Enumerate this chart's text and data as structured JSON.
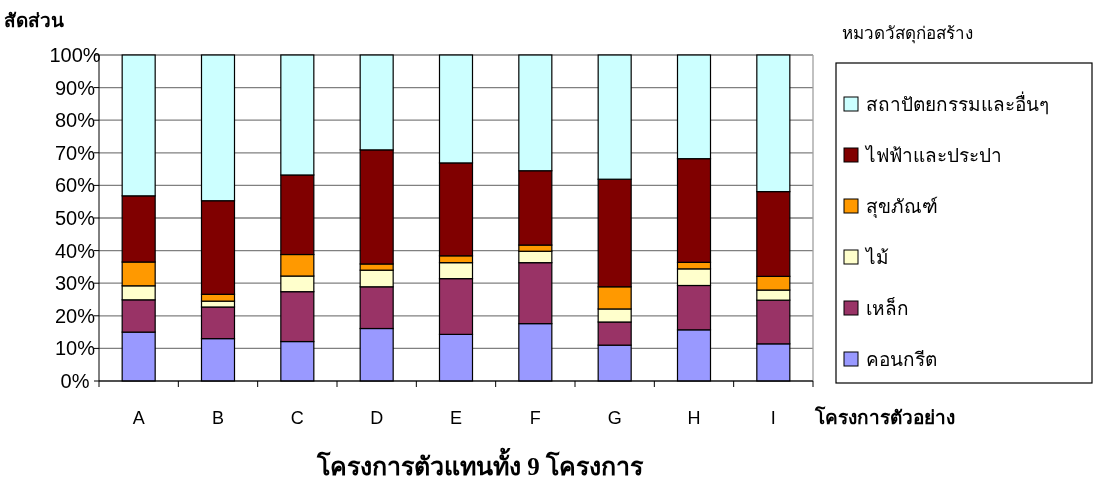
{
  "chart_data": {
    "type": "bar",
    "stacked": true,
    "title": "โครงการตัวแทนทั้ง 9 โครงการ",
    "xlabel": "โครงการตัวอย่าง",
    "ylabel": "สัดส่วน",
    "legend_title": "หมวดวัสดุก่อสร้าง",
    "legend": "right",
    "grid": "y",
    "categories": [
      "A",
      "B",
      "C",
      "D",
      "E",
      "F",
      "G",
      "H",
      "I"
    ],
    "ylim": [
      0,
      100
    ],
    "yticks": [
      {
        "value": 0,
        "label": "0%"
      },
      {
        "value": 10,
        "label": "10%"
      },
      {
        "value": 20,
        "label": "20%"
      },
      {
        "value": 30,
        "label": "30%"
      },
      {
        "value": 40,
        "label": "40%"
      },
      {
        "value": 50,
        "label": "50%"
      },
      {
        "value": 60,
        "label": "60%"
      },
      {
        "value": 70,
        "label": "70%"
      },
      {
        "value": 80,
        "label": "80%"
      },
      {
        "value": 90,
        "label": "90%"
      },
      {
        "value": 100,
        "label": "100%"
      }
    ],
    "series": [
      {
        "name": "คอนกรีต",
        "color": "#9999ff",
        "values": [
          15.0,
          13.0,
          12.1,
          16.1,
          14.3,
          17.6,
          11.0,
          15.7,
          11.4
        ]
      },
      {
        "name": "เหล็ก",
        "color": "#993366",
        "values": [
          9.9,
          9.7,
          15.3,
          12.8,
          17.1,
          18.7,
          7.1,
          13.6,
          13.4
        ]
      },
      {
        "name": "ไม้",
        "color": "#ffffcc",
        "values": [
          4.3,
          1.8,
          4.8,
          5.1,
          4.9,
          3.5,
          4.0,
          5.1,
          3.1
        ]
      },
      {
        "name": "สุขภัณฑ์",
        "color": "#ff9900",
        "values": [
          7.3,
          2.1,
          6.6,
          1.9,
          2.1,
          1.9,
          6.8,
          2.0,
          4.2
        ]
      },
      {
        "name": "ไฟฟ้าและประปา",
        "color": "#800000",
        "values": [
          20.3,
          28.7,
          24.4,
          35.0,
          28.5,
          22.8,
          33.0,
          31.8,
          26.0
        ]
      },
      {
        "name": "สถาปัตยกรรมและอื่นๆ",
        "color": "#ccffff",
        "values": [
          43.2,
          44.7,
          36.8,
          29.1,
          33.1,
          35.5,
          38.1,
          31.8,
          41.9
        ]
      }
    ]
  }
}
